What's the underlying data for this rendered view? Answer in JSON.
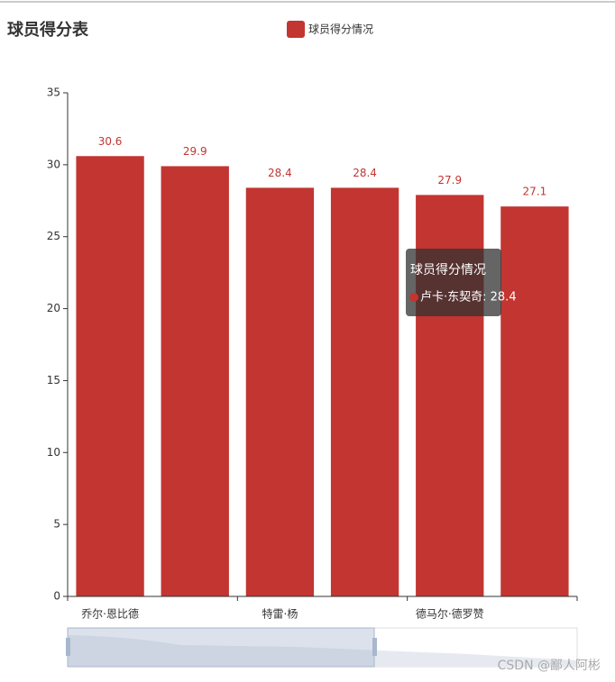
{
  "chart_data": {
    "type": "bar",
    "title": "球员得分表",
    "categories": [
      "乔尔·恩比德",
      null,
      "特雷·杨",
      null,
      "德马尔·德罗赞",
      null
    ],
    "series": [
      {
        "name": "球员得分情况",
        "color": "#c23531",
        "values": [
          30.6,
          29.9,
          28.4,
          28.4,
          27.9,
          27.1
        ]
      }
    ],
    "ylim": [
      0,
      35
    ],
    "yticks": [
      0,
      5,
      10,
      15,
      20,
      25,
      30,
      35
    ],
    "tooltip": {
      "title": "球员得分情况",
      "text": "卢卡·东契奇: 28.4"
    },
    "watermark": "CSDN @鄙人阿彬"
  }
}
